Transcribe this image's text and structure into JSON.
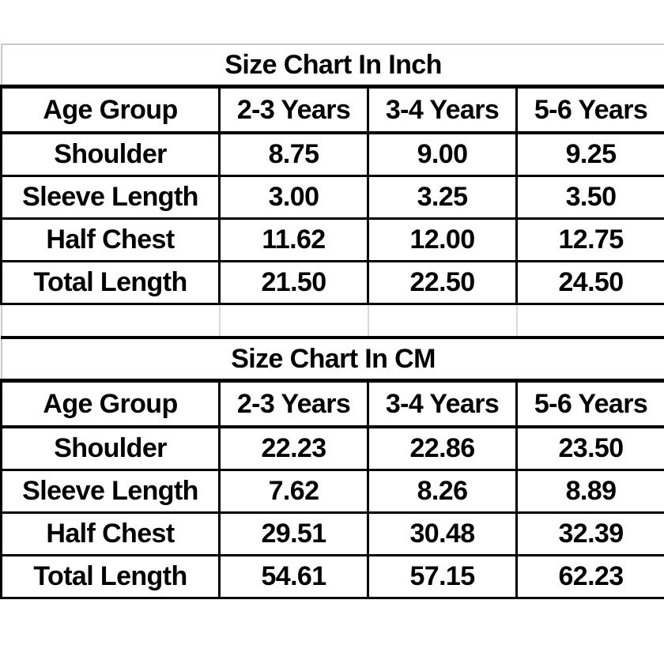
{
  "colors": {
    "text": "#000000",
    "border_black": "#000000",
    "gridline_gray": "#c9c9c9",
    "background": "#ffffff"
  },
  "chart_data": [
    {
      "type": "table",
      "title": "Size Chart In Inch",
      "unit": "inch",
      "columns": [
        "Age Group",
        "2-3 Years",
        "3-4 Years",
        "5-6 Years"
      ],
      "rows": [
        [
          "Shoulder",
          "8.75",
          "9.00",
          "9.25"
        ],
        [
          "Sleeve Length",
          "3.00",
          "3.25",
          "3.50"
        ],
        [
          "Half Chest",
          "11.62",
          "12.00",
          "12.75"
        ],
        [
          "Total Length",
          "21.50",
          "22.50",
          "24.50"
        ]
      ]
    },
    {
      "type": "table",
      "title": "Size Chart In CM",
      "unit": "cm",
      "columns": [
        "Age Group",
        "2-3 Years",
        "3-4 Years",
        "5-6 Years"
      ],
      "rows": [
        [
          "Shoulder",
          "22.23",
          "22.86",
          "23.50"
        ],
        [
          "Sleeve Length",
          "7.62",
          "8.26",
          "8.89"
        ],
        [
          "Half Chest",
          "29.51",
          "30.48",
          "32.39"
        ],
        [
          "Total Length",
          "54.61",
          "57.15",
          "62.23"
        ]
      ]
    }
  ]
}
